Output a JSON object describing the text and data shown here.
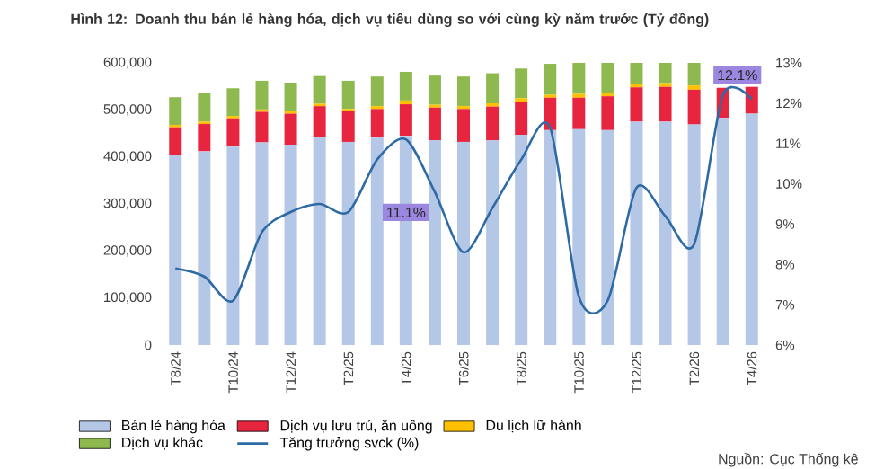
{
  "chart_data": {
    "type": "bar",
    "stacked": true,
    "title": "Hình 12: Doanh thu bán lẻ hàng hóa, dịch vụ tiêu dùng so với cùng kỳ năm trước (Tỷ đồng)",
    "categories": [
      "T8/24",
      null,
      "T10/24",
      null,
      "T12/24",
      null,
      "T2/25",
      null,
      "T4/25",
      null,
      "T6/25",
      null,
      "T8/25",
      null,
      "T10/25",
      null,
      "T12/25",
      null,
      "T2/26",
      null,
      "T4/26"
    ],
    "series": [
      {
        "name": "Bán lẻ hàng hóa",
        "color": "#b4c7e7",
        "values": [
          403000,
          412000,
          422000,
          431000,
          426000,
          443000,
          432000,
          441000,
          445000,
          435000,
          432000,
          435000,
          447000,
          457000,
          459000,
          457000,
          475000,
          475000,
          469000,
          483000,
          492000
        ]
      },
      {
        "name": "Dịch vụ lưu trú, ăn uống",
        "color": "#e8253f",
        "values": [
          60000,
          58000,
          60000,
          65000,
          66000,
          65000,
          65000,
          61000,
          67000,
          70000,
          70000,
          72000,
          70000,
          69000,
          67000,
          72000,
          73000,
          74000,
          74000,
          64000,
          57000
        ]
      },
      {
        "name": "Du lịch lữ hành",
        "color": "#ffc000",
        "values": [
          5000,
          5000,
          5000,
          5000,
          5000,
          5000,
          5000,
          6000,
          8000,
          6000,
          6000,
          7000,
          8000,
          6000,
          8000,
          6000,
          7000,
          8000,
          9000,
          null,
          null
        ]
      },
      {
        "name": "Dịch vụ khác",
        "color": "#8db94e",
        "values": [
          59000,
          61000,
          59000,
          61000,
          61000,
          59000,
          60000,
          63000,
          61000,
          62000,
          63000,
          64000,
          63000,
          66000,
          66000,
          65000,
          45000,
          43000,
          48000,
          null,
          null
        ]
      },
      {
        "name": "Tăng trưởng svck (%)",
        "type": "line",
        "axis": "y2",
        "color": "#2e6aa3",
        "values": [
          7.9,
          7.7,
          7.1,
          8.8,
          9.3,
          9.5,
          9.3,
          10.6,
          11.1,
          9.8,
          8.3,
          9.4,
          10.6,
          11.4,
          7.2,
          7.1,
          9.9,
          9.2,
          8.5,
          12.2,
          12.1
        ]
      }
    ],
    "ylim": [
      0,
      600000
    ],
    "yticks": [
      {
        "value": 0,
        "label": "0"
      },
      {
        "value": 100000,
        "label": "100,000"
      },
      {
        "value": 200000,
        "label": "200,000"
      },
      {
        "value": 300000,
        "label": "300,000"
      },
      {
        "value": 400000,
        "label": "400,000"
      },
      {
        "value": 500000,
        "label": "500,000"
      },
      {
        "value": 600000,
        "label": "600,000"
      }
    ],
    "y2lim": [
      6,
      13
    ],
    "y2ticks": [
      {
        "value": 6,
        "label": "6%"
      },
      {
        "value": 7,
        "label": "7%"
      },
      {
        "value": 8,
        "label": "8%"
      },
      {
        "value": 9,
        "label": "9%"
      },
      {
        "value": 10,
        "label": "10%"
      },
      {
        "value": 11,
        "label": "11%"
      },
      {
        "value": 12,
        "label": "12%"
      },
      {
        "value": 13,
        "label": "13%"
      }
    ],
    "annotations": [
      "11.1%",
      "12.1%",
      "Nguồn: Cục Thống kê"
    ],
    "legend": "bottom",
    "grid": false
  }
}
